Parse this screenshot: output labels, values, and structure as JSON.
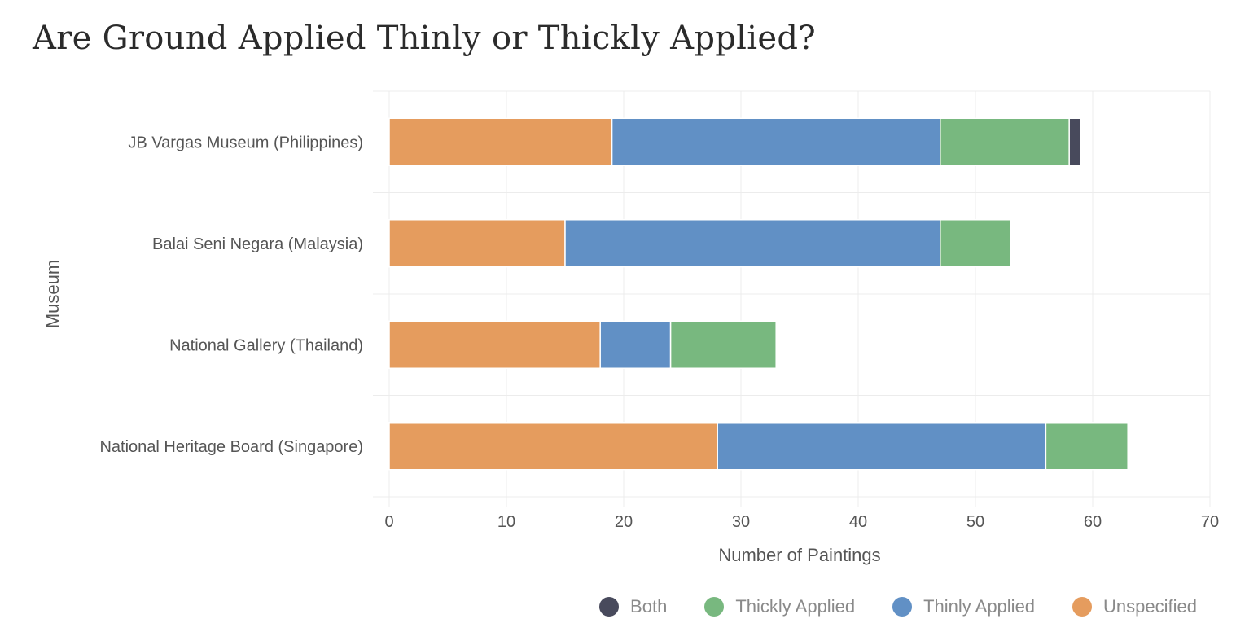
{
  "chart_data": {
    "type": "bar",
    "orientation": "horizontal",
    "stacked": true,
    "title": "Are Ground Applied Thinly or Thickly Applied?",
    "xlabel": "Number of Paintings",
    "ylabel": "Museum",
    "xlim": [
      0,
      70
    ],
    "xticks": [
      0,
      10,
      20,
      30,
      40,
      50,
      60,
      70
    ],
    "grid": true,
    "legend_position": "bottom-right",
    "categories": [
      "JB Vargas Museum (Philippines)",
      "Balai Seni Negara (Malaysia)",
      "National Gallery (Thailand)",
      "National Heritage Board (Singapore)"
    ],
    "series": [
      {
        "name": "Unspecified",
        "color": "#e59c5e",
        "values": [
          19,
          15,
          18,
          28
        ]
      },
      {
        "name": "Thinly Applied",
        "color": "#6190c5",
        "values": [
          28,
          32,
          6,
          28
        ]
      },
      {
        "name": "Thickly Applied",
        "color": "#78b87f",
        "values": [
          11,
          6,
          9,
          7
        ]
      },
      {
        "name": "Both",
        "color": "#484a5c",
        "values": [
          1,
          0,
          0,
          0
        ]
      }
    ],
    "legend_order": [
      "Both",
      "Thickly Applied",
      "Thinly Applied",
      "Unspecified"
    ]
  }
}
